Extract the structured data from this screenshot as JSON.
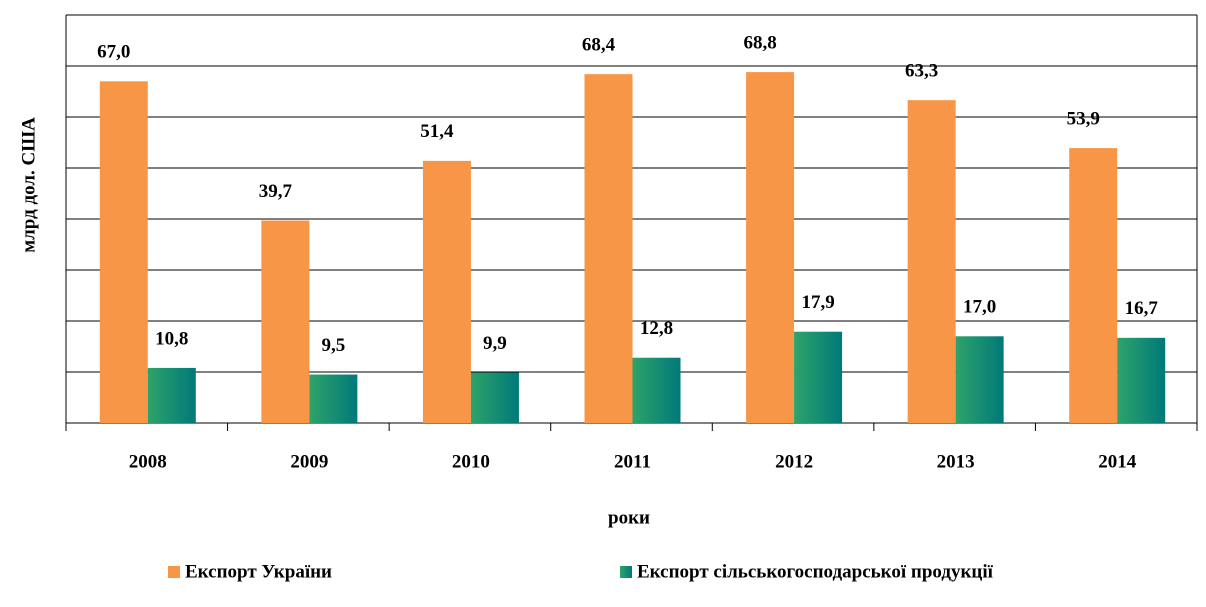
{
  "chart_data": {
    "type": "bar",
    "x_label": "роки",
    "y_label": "млрд дол. США",
    "categories": [
      "2008",
      "2009",
      "2010",
      "2011",
      "2012",
      "2013",
      "2014"
    ],
    "series": [
      {
        "name": "Експорт України",
        "color": "#f79646",
        "values": [
          67.0,
          39.7,
          51.4,
          68.4,
          68.8,
          63.3,
          53.9
        ],
        "value_labels": [
          "67,0",
          "39,7",
          "51,4",
          "68,4",
          "68,8",
          "63,3",
          "53,9"
        ]
      },
      {
        "name": "Експорт сільськогосподарської продукції",
        "color": "#17917a",
        "values": [
          10.8,
          9.5,
          9.9,
          12.8,
          17.9,
          17.0,
          16.7
        ],
        "value_labels": [
          "10,8",
          "9,5",
          "9,9",
          "12,8",
          "17,9",
          "17,0",
          "16,7"
        ]
      }
    ],
    "ylim": [
      0,
      80
    ],
    "yticks": [
      0,
      10,
      20,
      30,
      40,
      50,
      60,
      70,
      80
    ],
    "grid": true,
    "legend": "bottom"
  }
}
